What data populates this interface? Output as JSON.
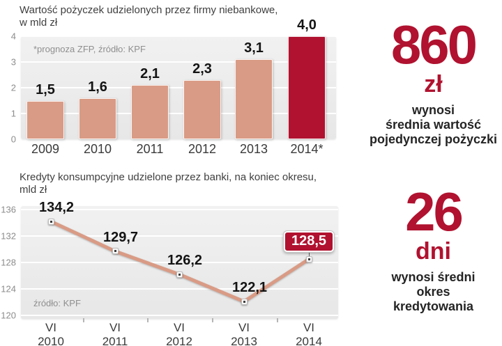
{
  "colors": {
    "accent_red": "#b0122f",
    "salmon": "#d99b85",
    "plot_bg": "#ececec",
    "grid": "#ffffff",
    "title_text": "#3f3f3f",
    "tick_text": "#8c8c8c",
    "value_text": "#141414"
  },
  "chart_data": [
    {
      "type": "bar",
      "title": "Wartość pożyczek udzielonych przez firmy niebankowe,",
      "title_line2": "w mld zł",
      "note": "*prognoza ZFP, źródło: KPF",
      "categories": [
        "2009",
        "2010",
        "2011",
        "2012",
        "2013",
        "2014*"
      ],
      "values": [
        1.5,
        1.6,
        2.1,
        2.3,
        3.1,
        4.0
      ],
      "value_labels": [
        "1,5",
        "1,6",
        "2,1",
        "2,3",
        "3,1",
        "4,0"
      ],
      "highlight_index": 5,
      "ylim": [
        0,
        4
      ],
      "yticks": [
        0,
        1,
        2,
        3,
        4
      ],
      "grid": true,
      "legend": false
    },
    {
      "type": "line",
      "title": "Kredyty konsumpcyjne udzielone przez banki, na koniec okresu,",
      "title_line2": "mld zł",
      "note": "źródło: KPF",
      "x": [
        "VI|2010",
        "VI|2011",
        "VI|2012",
        "VI|2013",
        "VI|2014"
      ],
      "values": [
        134.2,
        129.7,
        126.2,
        122.1,
        128.5
      ],
      "value_labels": [
        "134,2",
        "129,7",
        "126,2",
        "122,1",
        "128,5"
      ],
      "badge_index": 4,
      "ylim": [
        120,
        136
      ],
      "yticks": [
        136,
        132,
        128,
        124,
        120
      ],
      "grid": true,
      "legend": false
    }
  ],
  "stats": [
    {
      "value": "860",
      "unit": "zł",
      "desc_lines": [
        "wynosi",
        "średnia wartość",
        "pojedynczej pożyczki"
      ]
    },
    {
      "value": "26",
      "unit": "dni",
      "desc_lines": [
        "wynosi średni",
        "okres",
        "kredytowania"
      ]
    }
  ]
}
